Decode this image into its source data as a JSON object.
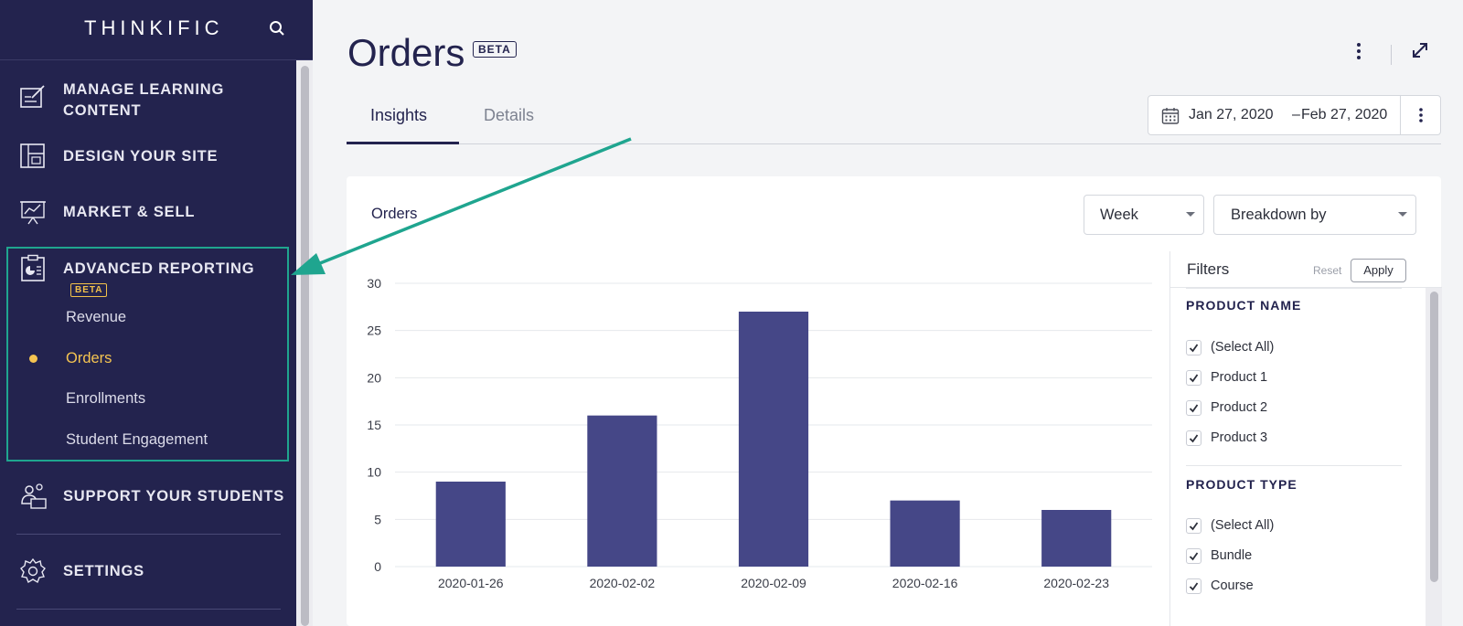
{
  "brand": {
    "name": "THINKIFIC"
  },
  "sidebar": {
    "items": [
      {
        "label": "MANAGE LEARNING",
        "label2": "CONTENT"
      },
      {
        "label": "DESIGN YOUR SITE"
      },
      {
        "label": "MARKET & SELL"
      },
      {
        "label": "ADVANCED REPORTING",
        "badge": "BETA"
      },
      {
        "label": "SUPPORT YOUR STUDENTS"
      },
      {
        "label": "SETTINGS"
      }
    ],
    "reporting_subitems": [
      "Revenue",
      "Orders",
      "Enrollments",
      "Student Engagement"
    ],
    "active_subitem": "Orders",
    "accent_color": "#f5c451"
  },
  "header": {
    "title": "Orders",
    "badge": "BETA"
  },
  "tabs": [
    {
      "label": "Insights",
      "active": true
    },
    {
      "label": "Details",
      "active": false
    }
  ],
  "date_range": {
    "start": "Jan 27, 2020",
    "separator": "–",
    "end": "Feb 27, 2020"
  },
  "card": {
    "title": "Orders",
    "interval_select": "Week",
    "breakdown_select": "Breakdown by"
  },
  "filters": {
    "title": "Filters",
    "reset": "Reset",
    "apply": "Apply",
    "groups": [
      {
        "title": "PRODUCT NAME",
        "options": [
          "(Select All)",
          "Product 1",
          "Product 2",
          "Product 3"
        ]
      },
      {
        "title": "PRODUCT TYPE",
        "options": [
          "(Select All)",
          "Bundle",
          "Course"
        ]
      }
    ]
  },
  "chart_data": {
    "type": "bar",
    "categories": [
      "2020-01-26",
      "2020-02-02",
      "2020-02-09",
      "2020-02-16",
      "2020-02-23"
    ],
    "values": [
      9,
      16,
      27,
      7,
      6
    ],
    "ylim": [
      0,
      30
    ],
    "yticks": [
      0,
      5,
      10,
      15,
      20,
      25,
      30
    ],
    "grid": true,
    "bar_color": "#454787"
  }
}
